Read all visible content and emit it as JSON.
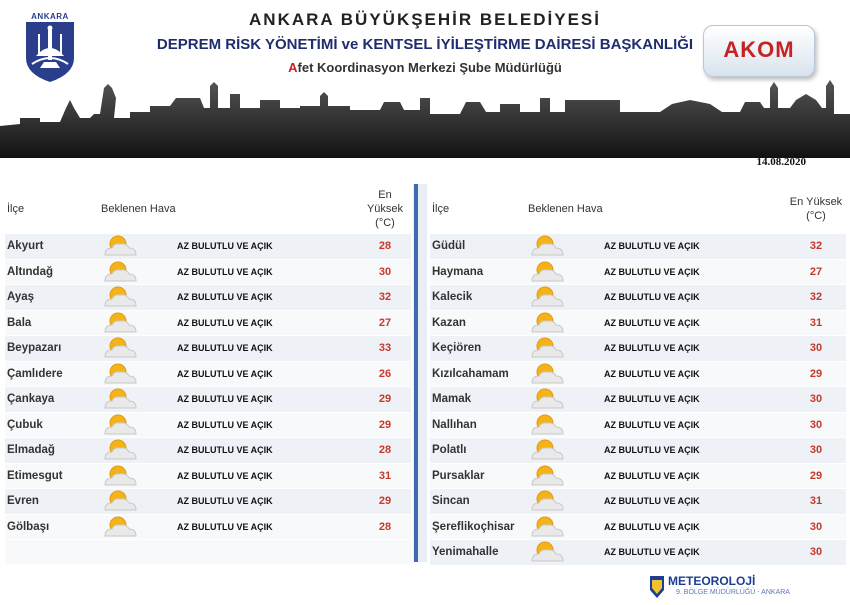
{
  "header": {
    "logo_text": "ANKARA",
    "title": "ANKARA BÜYÜKŞEHİR BELEDİYESİ",
    "subtitle": "DEPREM RİSK YÖNETİMİ ve KENTSEL İYİLEŞTİRME DAİRESİ BAŞKANLIĞI",
    "dept_first_letter": "A",
    "dept_rest": "fet Koordinasyon Merkezi Şube Müdürlüğü",
    "akom_label": "AKOM",
    "date": "14.08.2020"
  },
  "columns": {
    "district": "İlçe",
    "weather": "Beklenen Hava",
    "max_temp": "En Yüksek (°C)"
  },
  "left_rows": [
    {
      "district": "Akyurt",
      "weather": "AZ BULUTLU VE AÇIK",
      "temp": "28",
      "icon": "partly-cloudy-icon"
    },
    {
      "district": "Altındağ",
      "weather": "AZ BULUTLU VE AÇIK",
      "temp": "30",
      "icon": "partly-cloudy-icon"
    },
    {
      "district": "Ayaş",
      "weather": "AZ BULUTLU VE AÇIK",
      "temp": "32",
      "icon": "partly-cloudy-icon"
    },
    {
      "district": "Bala",
      "weather": "AZ BULUTLU VE AÇIK",
      "temp": "27",
      "icon": "partly-cloudy-icon"
    },
    {
      "district": "Beypazarı",
      "weather": "AZ BULUTLU VE AÇIK",
      "temp": "33",
      "icon": "partly-cloudy-icon"
    },
    {
      "district": "Çamlıdere",
      "weather": "AZ BULUTLU VE AÇIK",
      "temp": "26",
      "icon": "partly-cloudy-icon"
    },
    {
      "district": "Çankaya",
      "weather": "AZ BULUTLU VE AÇIK",
      "temp": "29",
      "icon": "partly-cloudy-icon"
    },
    {
      "district": "Çubuk",
      "weather": "AZ BULUTLU VE AÇIK",
      "temp": "29",
      "icon": "partly-cloudy-icon"
    },
    {
      "district": "Elmadağ",
      "weather": "AZ BULUTLU VE AÇIK",
      "temp": "28",
      "icon": "partly-cloudy-icon"
    },
    {
      "district": "Etimesgut",
      "weather": "AZ BULUTLU VE AÇIK",
      "temp": "31",
      "icon": "partly-cloudy-icon"
    },
    {
      "district": "Evren",
      "weather": "AZ BULUTLU VE AÇIK",
      "temp": "29",
      "icon": "partly-cloudy-icon"
    },
    {
      "district": "Gölbaşı",
      "weather": "AZ BULUTLU VE AÇIK",
      "temp": "28",
      "icon": "partly-cloudy-icon"
    }
  ],
  "right_rows": [
    {
      "district": "Güdül",
      "weather": "AZ BULUTLU VE AÇIK",
      "temp": "32",
      "icon": "partly-cloudy-icon"
    },
    {
      "district": "Haymana",
      "weather": "AZ BULUTLU VE AÇIK",
      "temp": "27",
      "icon": "partly-cloudy-icon"
    },
    {
      "district": "Kalecik",
      "weather": "AZ BULUTLU VE AÇIK",
      "temp": "32",
      "icon": "partly-cloudy-icon"
    },
    {
      "district": "Kazan",
      "weather": "AZ BULUTLU VE AÇIK",
      "temp": "31",
      "icon": "partly-cloudy-icon"
    },
    {
      "district": "Keçiören",
      "weather": "AZ BULUTLU VE AÇIK",
      "temp": "30",
      "icon": "partly-cloudy-icon"
    },
    {
      "district": "Kızılcahamam",
      "weather": "AZ BULUTLU VE AÇIK",
      "temp": "29",
      "icon": "partly-cloudy-icon"
    },
    {
      "district": "Mamak",
      "weather": "AZ BULUTLU VE AÇIK",
      "temp": "30",
      "icon": "partly-cloudy-icon"
    },
    {
      "district": "Nallıhan",
      "weather": "AZ BULUTLU VE AÇIK",
      "temp": "30",
      "icon": "partly-cloudy-icon"
    },
    {
      "district": "Polatlı",
      "weather": "AZ BULUTLU VE AÇIK",
      "temp": "30",
      "icon": "partly-cloudy-icon"
    },
    {
      "district": "Pursaklar",
      "weather": "AZ BULUTLU VE AÇIK",
      "temp": "29",
      "icon": "partly-cloudy-icon"
    },
    {
      "district": "Sincan",
      "weather": "AZ BULUTLU VE AÇIK",
      "temp": "31",
      "icon": "partly-cloudy-icon"
    },
    {
      "district": "Şereflikoçhisar",
      "weather": "AZ BULUTLU VE AÇIK",
      "temp": "30",
      "icon": "partly-cloudy-icon"
    },
    {
      "district": "Yenimahalle",
      "weather": "AZ BULUTLU VE AÇIK",
      "temp": "30",
      "icon": "partly-cloudy-icon"
    }
  ],
  "footer": {
    "org": "METEOROLOJİ",
    "unit": "9. BÖLGE MÜDÜRLÜĞÜ - ANKARA"
  },
  "colors": {
    "accent_blue": "#3e6bb0",
    "temp_red": "#c43a2a",
    "akom_red": "#c72222"
  }
}
